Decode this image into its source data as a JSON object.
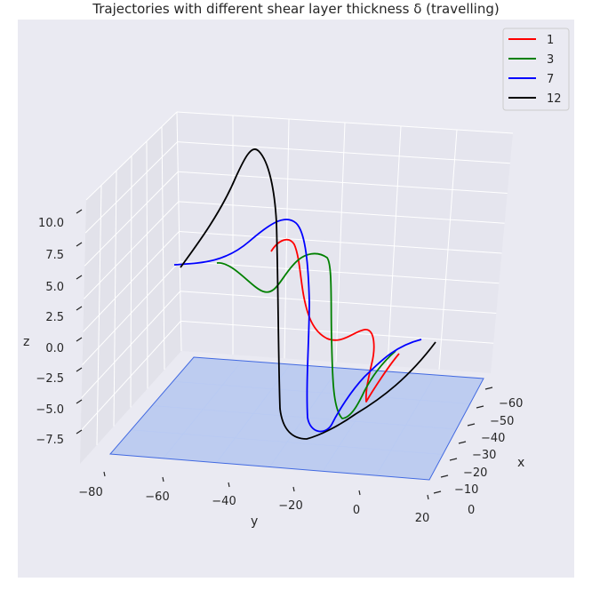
{
  "chart_data": {
    "type": "line",
    "projection": "3d",
    "title": "Trajectories with different shear layer thickness δ (travelling)",
    "xlabel": "x",
    "ylabel": "y",
    "zlabel": "z",
    "x_ticks": [
      "−60",
      "−50",
      "−40",
      "−30",
      "−20",
      "−10",
      "0"
    ],
    "y_ticks": [
      "−80",
      "−60",
      "−40",
      "−20",
      "0",
      "20"
    ],
    "z_ticks": [
      "10.0",
      "7.5",
      "5.0",
      "2.5",
      "0.0",
      "−2.5",
      "−5.0",
      "−7.5"
    ],
    "xlim": [
      -65,
      5
    ],
    "ylim": [
      -85,
      20
    ],
    "zlim": [
      -9,
      12
    ],
    "grid": true,
    "legend_position": "top-right",
    "plane": {
      "z": -9,
      "color": "#aabff0",
      "edge": "#4169e1"
    },
    "series": [
      {
        "name": "1",
        "color": "#ff0000"
      },
      {
        "name": "3",
        "color": "#008000"
      },
      {
        "name": "7",
        "color": "#0000ff"
      },
      {
        "name": "12",
        "color": "#000000"
      }
    ]
  }
}
